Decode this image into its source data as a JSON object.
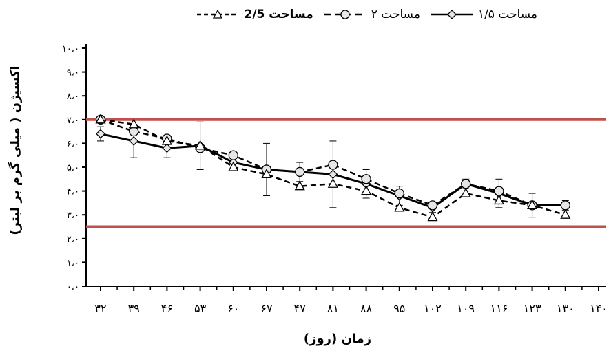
{
  "chart_data": {
    "type": "line",
    "xlabel": "زمان (روز)",
    "ylabel": "اکسیژن ( میلی گرم بر لیتر)",
    "categories": [
      "۳۲",
      "۳۹",
      "۴۶",
      "۵۳",
      "۶۰",
      "۶۷",
      "۴۷",
      "۸۱",
      "۸۸",
      "۹۵",
      "۱۰۲",
      "۱۰۹",
      "۱۱۶",
      "۱۲۳",
      "۱۳۰",
      "۱۴۰"
    ],
    "yticks": [
      "۰،۰",
      "۱،۰",
      "۲،۰",
      "۳،۰",
      "۴،۰",
      "۵،۰",
      "۶،۰",
      "۷،۰",
      "۸،۰",
      "۹،۰",
      "۱۰،۰"
    ],
    "ylim": [
      0,
      10
    ],
    "series": [
      {
        "name": "مساحت ۱/۵",
        "marker": "diamond",
        "dash": "solid",
        "values": [
          6.4,
          6.1,
          5.8,
          5.9,
          5.2,
          4.9,
          4.8,
          4.7,
          4.3,
          3.8,
          3.3,
          4.3,
          3.9,
          3.4,
          3.4,
          null
        ],
        "errors": [
          0.3,
          0.7,
          0.4,
          1.0,
          0.3,
          1.1,
          0.4,
          1.4,
          0.6,
          0.4,
          0.2,
          0.2,
          0.6,
          0.5,
          0.2,
          null
        ]
      },
      {
        "name": "مساحت ۲",
        "marker": "circle",
        "dash": "dashed",
        "values": [
          7.0,
          6.5,
          6.2,
          5.8,
          5.5,
          4.9,
          4.8,
          5.1,
          4.5,
          3.9,
          3.4,
          4.3,
          4.0,
          3.4,
          3.4,
          null
        ]
      },
      {
        "name": "مساحت 2/5",
        "marker": "triangle",
        "dash": "dashed",
        "values": [
          7.0,
          6.8,
          6.1,
          5.9,
          5.0,
          4.7,
          4.2,
          4.3,
          4.0,
          3.3,
          2.9,
          3.9,
          3.6,
          3.4,
          3.0,
          null
        ]
      }
    ],
    "reference_lines": [
      7.0,
      2.5
    ],
    "reference_color": "#c0504d",
    "grid": false,
    "legend_position": "top"
  }
}
